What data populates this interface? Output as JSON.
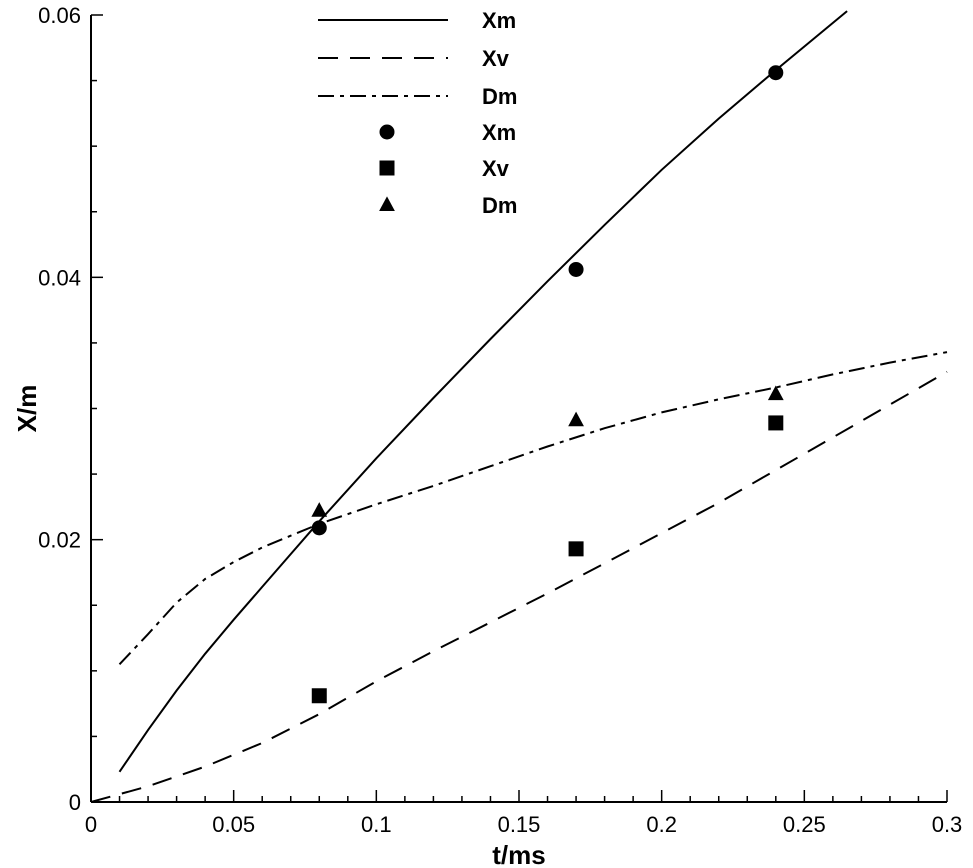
{
  "chart_data": {
    "type": "line",
    "title": "",
    "xlabel": "t/ms",
    "ylabel": "X/m",
    "xlim": [
      0,
      0.3
    ],
    "ylim": [
      0,
      0.06
    ],
    "x_ticks": [
      0,
      0.05,
      0.1,
      0.15,
      0.2,
      0.25,
      0.3
    ],
    "x_tick_labels": [
      "0",
      "0.05",
      "0.1",
      "0.15",
      "0.2",
      "0.25",
      "0.3"
    ],
    "y_ticks": [
      0,
      0.02,
      0.04,
      0.06
    ],
    "y_tick_labels": [
      "0",
      "0.02",
      "0.04",
      "0.06"
    ],
    "grid": false,
    "legend_position": "top-center",
    "series": [
      {
        "name": "Xm",
        "kind": "line",
        "style": "solid",
        "x": [
          0.01,
          0.02,
          0.03,
          0.04,
          0.05,
          0.06,
          0.07,
          0.08,
          0.1,
          0.12,
          0.14,
          0.16,
          0.18,
          0.2,
          0.22,
          0.24,
          0.26,
          0.265
        ],
        "y": [
          0.0023,
          0.0055,
          0.0085,
          0.0113,
          0.0139,
          0.0164,
          0.0189,
          0.0214,
          0.0262,
          0.0308,
          0.0353,
          0.0397,
          0.044,
          0.0482,
          0.0521,
          0.0558,
          0.0594,
          0.0603
        ]
      },
      {
        "name": "Xv",
        "kind": "line",
        "style": "dashed",
        "x": [
          0,
          0.02,
          0.04,
          0.06,
          0.08,
          0.1,
          0.12,
          0.14,
          0.16,
          0.18,
          0.2,
          0.22,
          0.24,
          0.26,
          0.28,
          0.3
        ],
        "y": [
          0,
          0.0012,
          0.0027,
          0.0045,
          0.0067,
          0.0092,
          0.0115,
          0.0137,
          0.0159,
          0.0182,
          0.0205,
          0.0228,
          0.0253,
          0.0278,
          0.0303,
          0.0328
        ]
      },
      {
        "name": "Dm",
        "kind": "line",
        "style": "dashdot",
        "x": [
          0.01,
          0.02,
          0.03,
          0.04,
          0.05,
          0.06,
          0.07,
          0.08,
          0.1,
          0.12,
          0.14,
          0.16,
          0.18,
          0.2,
          0.22,
          0.24,
          0.26,
          0.28,
          0.3
        ],
        "y": [
          0.0105,
          0.0128,
          0.0152,
          0.017,
          0.0183,
          0.0194,
          0.0203,
          0.0212,
          0.0227,
          0.0241,
          0.0256,
          0.0271,
          0.0285,
          0.0297,
          0.0307,
          0.0316,
          0.0326,
          0.0335,
          0.0343
        ]
      },
      {
        "name": "Xm",
        "kind": "marker",
        "marker": "circle",
        "x": [
          0.08,
          0.17,
          0.24
        ],
        "y": [
          0.0209,
          0.0406,
          0.0556
        ]
      },
      {
        "name": "Xv",
        "kind": "marker",
        "marker": "square",
        "x": [
          0.08,
          0.17,
          0.24
        ],
        "y": [
          0.0081,
          0.0193,
          0.0289
        ]
      },
      {
        "name": "Dm",
        "kind": "marker",
        "marker": "triangle",
        "x": [
          0.08,
          0.17,
          0.24
        ],
        "y": [
          0.0222,
          0.0291,
          0.0311
        ]
      }
    ]
  }
}
